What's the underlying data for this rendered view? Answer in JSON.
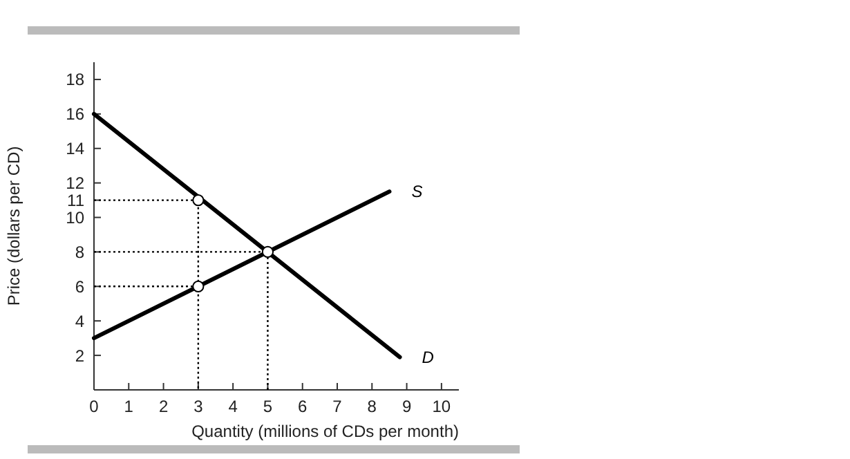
{
  "chart_data": {
    "type": "line",
    "xlabel": "Quantity (millions of CDs per month)",
    "ylabel": "Price (dollars per CD)",
    "xlim": [
      0,
      10.5
    ],
    "ylim": [
      0,
      19
    ],
    "xticks": [
      0,
      1,
      2,
      3,
      4,
      5,
      6,
      7,
      8,
      9,
      10
    ],
    "yticks": [
      2,
      4,
      6,
      8,
      10,
      11,
      12,
      14,
      16,
      18
    ],
    "grid": false,
    "legend": false,
    "series": [
      {
        "name": "S",
        "color": "#000000",
        "x": [
          0,
          8.5
        ],
        "values": [
          3,
          11.5
        ],
        "line_style": "solid"
      },
      {
        "name": "D",
        "color": "#000000",
        "x": [
          0,
          8.8
        ],
        "values": [
          16,
          1.9
        ],
        "line_style": "solid"
      },
      {
        "color": "#000000",
        "x": [
          0,
          3,
          3
        ],
        "values": [
          11,
          11,
          0
        ],
        "line_style": "dotted"
      },
      {
        "color": "#000000",
        "x": [
          0,
          3
        ],
        "values": [
          6,
          6
        ],
        "line_style": "dotted"
      },
      {
        "color": "#000000",
        "x": [
          0,
          5,
          5
        ],
        "values": [
          8,
          8,
          0
        ],
        "line_style": "dotted"
      },
      {
        "type": "scatter",
        "color": "#000000",
        "x": [
          3,
          3,
          5
        ],
        "values": [
          11,
          6,
          8
        ],
        "marker": "circle"
      }
    ]
  }
}
